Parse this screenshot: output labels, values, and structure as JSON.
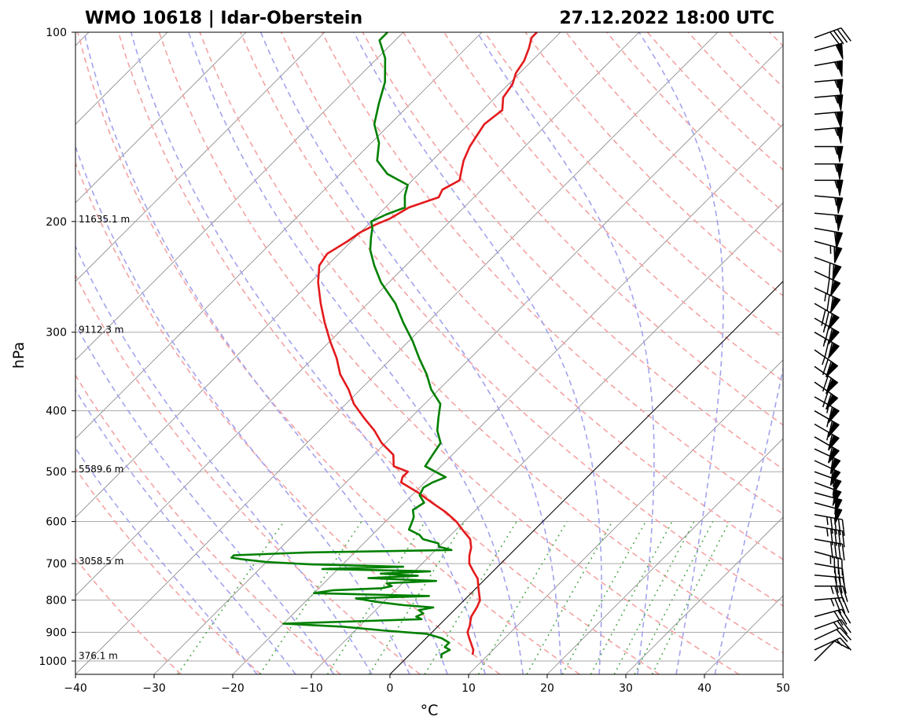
{
  "header": {
    "title_left": "WMO 10618 | Idar-Oberstein",
    "title_right": "27.12.2022 18:00 UTC"
  },
  "chart_data": {
    "type": "line",
    "xlabel": "°C",
    "ylabel": "hPa",
    "xlim": [
      -40,
      50
    ],
    "ylim": [
      1050,
      100
    ],
    "y_scale": "log",
    "skew": "45-degree skewed isotherms",
    "x_ticks": [
      "−40",
      "−30",
      "−20",
      "−10",
      "0",
      "10",
      "20",
      "30",
      "40",
      "50"
    ],
    "y_ticks": [
      "100",
      "200",
      "300",
      "400",
      "500",
      "600",
      "700",
      "800",
      "900",
      "1000"
    ],
    "height_labels": [
      {
        "p": 200,
        "text": "11635.1 m"
      },
      {
        "p": 300,
        "text": "9112.3 m"
      },
      {
        "p": 500,
        "text": "5589.6 m"
      },
      {
        "p": 700,
        "text": "3058.5 m"
      },
      {
        "p": 990,
        "text": "376.1 m"
      }
    ],
    "series": [
      {
        "role": "temperature",
        "color": "#e31a1c",
        "p": [
          977,
          960,
          940,
          920,
          900,
          880,
          865,
          850,
          820,
          800,
          780,
          760,
          740,
          720,
          700,
          680,
          660,
          640,
          620,
          600,
          580,
          560,
          540,
          520,
          510,
          500,
          490,
          470,
          450,
          430,
          410,
          390,
          370,
          350,
          330,
          310,
          290,
          270,
          250,
          235,
          225,
          215,
          208,
          202,
          198,
          190,
          183,
          178,
          172,
          166,
          160,
          152,
          146,
          140,
          133,
          127,
          121,
          116,
          111,
          106,
          102,
          100
        ],
        "t": [
          8.0,
          7.5,
          6.5,
          5.5,
          4.5,
          4.0,
          3.5,
          3.0,
          2.5,
          2.0,
          1.0,
          0.0,
          -1.0,
          -2.5,
          -4.0,
          -5.0,
          -5.8,
          -7.0,
          -9.0,
          -11.0,
          -13.5,
          -16.5,
          -19.5,
          -23.0,
          -23.5,
          -23.5,
          -26.0,
          -27.5,
          -30.5,
          -33.0,
          -36.0,
          -39.0,
          -41.5,
          -44.5,
          -47.0,
          -50.0,
          -53.0,
          -56.0,
          -59.0,
          -61.0,
          -61.5,
          -60.5,
          -60.0,
          -59.0,
          -58.0,
          -57.0,
          -54.5,
          -55.0,
          -54.0,
          -55.0,
          -56.0,
          -57.0,
          -57.5,
          -58.0,
          -57.5,
          -59.0,
          -59.5,
          -60.5,
          -61.0,
          -62.0,
          -63.0,
          -63.0
        ]
      },
      {
        "role": "dewpoint",
        "color": "#008000",
        "p": [
          990,
          975,
          960,
          950,
          935,
          920,
          905,
          895,
          882,
          872,
          862,
          858,
          850,
          840,
          830,
          822,
          815,
          805,
          795,
          788,
          780,
          772,
          766,
          760,
          752,
          746,
          738,
          732,
          726,
          720,
          714,
          708,
          702,
          696,
          690,
          685,
          679,
          672,
          666,
          658,
          650,
          640,
          630,
          618,
          603,
          590,
          575,
          560,
          545,
          530,
          520,
          510,
          500,
          490,
          470,
          450,
          430,
          410,
          390,
          370,
          350,
          330,
          310,
          290,
          270,
          250,
          235,
          222,
          212,
          205,
          200,
          195,
          190,
          182,
          175,
          168,
          160,
          150,
          140,
          130,
          120,
          110,
          103,
          100
        ],
        "t": [
          4.5,
          4.0,
          4.5,
          3.5,
          3.5,
          2.0,
          -0.5,
          -6.0,
          -12.0,
          -20.0,
          -8.0,
          -3.0,
          -4.0,
          -3.5,
          -4.5,
          -3.0,
          -7.0,
          -11.0,
          -14.0,
          -5.0,
          -20.0,
          -18.0,
          -12.0,
          -11.0,
          -12.0,
          -6.0,
          -15.0,
          -9.0,
          -14.0,
          -8.0,
          -22.0,
          -12.0,
          -24.0,
          -30.0,
          -33.0,
          -35.0,
          -35.0,
          -26.0,
          -8.0,
          -10.0,
          -10.5,
          -13.0,
          -14.0,
          -16.0,
          -16.5,
          -17.0,
          -18.0,
          -17.5,
          -19.0,
          -19.5,
          -19.0,
          -18.0,
          -20.0,
          -22.0,
          -22.5,
          -23.0,
          -25.0,
          -26.5,
          -28.0,
          -31.0,
          -33.5,
          -36.5,
          -39.5,
          -43.0,
          -46.5,
          -51.0,
          -54.0,
          -56.5,
          -58.0,
          -59.0,
          -60.0,
          -59.0,
          -57.5,
          -59.0,
          -60.0,
          -64.0,
          -67.0,
          -69.0,
          -72.0,
          -74.0,
          -76.0,
          -79.0,
          -82.0,
          -82.0
        ]
      }
    ],
    "wind_barbs": [
      {
        "p": 1000,
        "dir": 225,
        "kt": 10
      },
      {
        "p": 960,
        "dir": 245,
        "kt": 15
      },
      {
        "p": 925,
        "dir": 245,
        "kt": 20
      },
      {
        "p": 890,
        "dir": 250,
        "kt": 25
      },
      {
        "p": 850,
        "dir": 255,
        "kt": 30
      },
      {
        "p": 800,
        "dir": 265,
        "kt": 35
      },
      {
        "p": 760,
        "dir": 270,
        "kt": 35
      },
      {
        "p": 730,
        "dir": 275,
        "kt": 30
      },
      {
        "p": 700,
        "dir": 280,
        "kt": 30
      },
      {
        "p": 670,
        "dir": 285,
        "kt": 35
      },
      {
        "p": 640,
        "dir": 280,
        "kt": 40
      },
      {
        "p": 610,
        "dir": 280,
        "kt": 45
      },
      {
        "p": 585,
        "dir": 280,
        "kt": 45
      },
      {
        "p": 560,
        "dir": 285,
        "kt": 50
      },
      {
        "p": 540,
        "dir": 285,
        "kt": 50
      },
      {
        "p": 520,
        "dir": 290,
        "kt": 55
      },
      {
        "p": 500,
        "dir": 290,
        "kt": 55
      },
      {
        "p": 480,
        "dir": 295,
        "kt": 60
      },
      {
        "p": 460,
        "dir": 295,
        "kt": 60
      },
      {
        "p": 440,
        "dir": 300,
        "kt": 60
      },
      {
        "p": 420,
        "dir": 300,
        "kt": 65
      },
      {
        "p": 400,
        "dir": 300,
        "kt": 65
      },
      {
        "p": 380,
        "dir": 300,
        "kt": 65
      },
      {
        "p": 360,
        "dir": 305,
        "kt": 70
      },
      {
        "p": 340,
        "dir": 305,
        "kt": 70
      },
      {
        "p": 320,
        "dir": 305,
        "kt": 75
      },
      {
        "p": 300,
        "dir": 300,
        "kt": 75
      },
      {
        "p": 285,
        "dir": 300,
        "kt": 75
      },
      {
        "p": 270,
        "dir": 300,
        "kt": 80
      },
      {
        "p": 255,
        "dir": 295,
        "kt": 75
      },
      {
        "p": 240,
        "dir": 295,
        "kt": 70
      },
      {
        "p": 228,
        "dir": 290,
        "kt": 70
      },
      {
        "p": 215,
        "dir": 285,
        "kt": 65
      },
      {
        "p": 205,
        "dir": 280,
        "kt": 60
      },
      {
        "p": 194,
        "dir": 275,
        "kt": 55
      },
      {
        "p": 182,
        "dir": 275,
        "kt": 55
      },
      {
        "p": 172,
        "dir": 270,
        "kt": 55
      },
      {
        "p": 162,
        "dir": 270,
        "kt": 55
      },
      {
        "p": 152,
        "dir": 270,
        "kt": 55
      },
      {
        "p": 143,
        "dir": 265,
        "kt": 55
      },
      {
        "p": 135,
        "dir": 265,
        "kt": 60
      },
      {
        "p": 127,
        "dir": 265,
        "kt": 55
      },
      {
        "p": 120,
        "dir": 265,
        "kt": 55
      },
      {
        "p": 113,
        "dir": 260,
        "kt": 55
      },
      {
        "p": 107,
        "dir": 255,
        "kt": 50
      },
      {
        "p": 102,
        "dir": 250,
        "kt": 40
      }
    ],
    "colors": {
      "dry_adiabat": "#f4a3a3",
      "moist_adiabat": "#a3a3ee",
      "mixing_ratio": "#55aa55",
      "isotherm": "#888888",
      "isobar": "#aaaaaa",
      "zero_isotherm": "#000000"
    },
    "grid": true
  }
}
